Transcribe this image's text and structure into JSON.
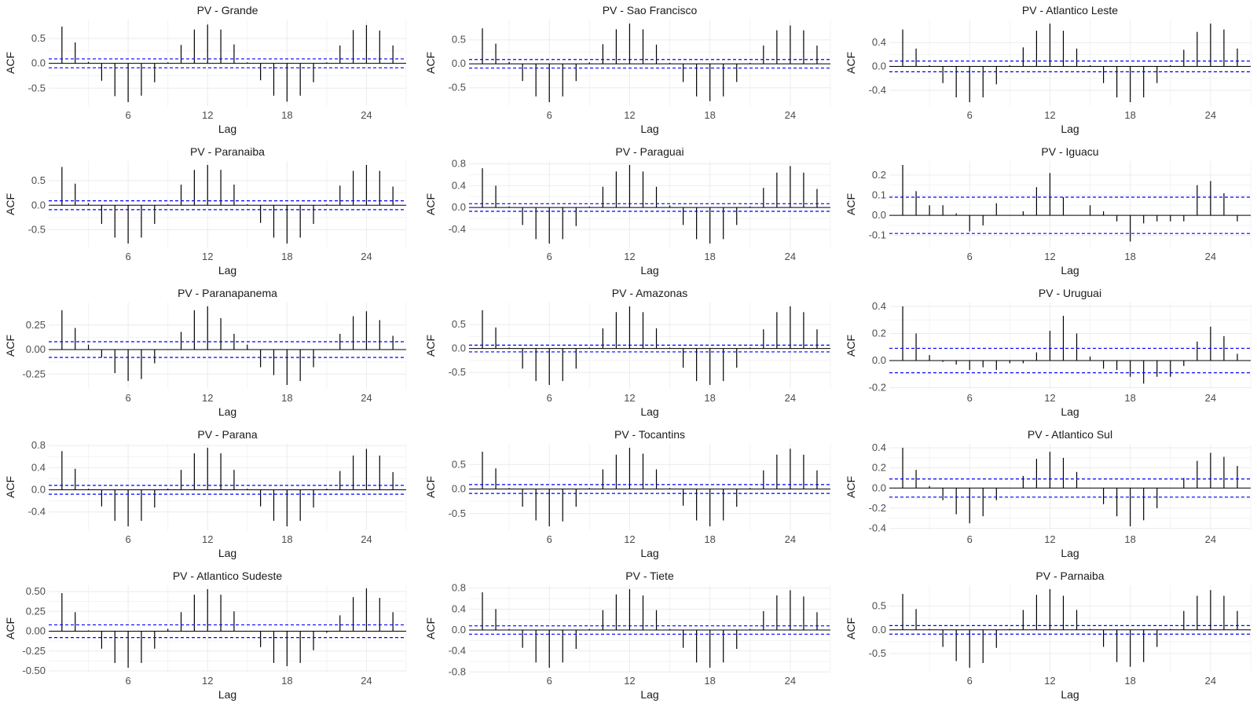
{
  "colors": {
    "bar": "#000000",
    "conf": "#0000ff",
    "grid": "#ebebeb",
    "text": "#4d4d4d",
    "title": "#1a1a1a"
  },
  "chart_data": [
    {
      "type": "bar",
      "title": "PV - Grande",
      "xlabel": "Lag",
      "ylabel": "ACF",
      "x_ticks": [
        6,
        12,
        18,
        24
      ],
      "y_ticks": [
        -0.5,
        0.0,
        0.5
      ],
      "y_tick_labels": [
        "-0.5",
        "0.0",
        "0.5"
      ],
      "ylim": [
        -0.78,
        0.8
      ],
      "conf": 0.09,
      "lags": [
        1,
        2,
        3,
        4,
        5,
        6,
        7,
        8,
        9,
        10,
        11,
        12,
        13,
        14,
        15,
        16,
        17,
        18,
        19,
        20,
        21,
        22,
        23,
        24,
        25,
        26
      ],
      "values": [
        0.74,
        0.42,
        0.03,
        -0.35,
        -0.66,
        -0.78,
        -0.65,
        -0.38,
        0.02,
        0.37,
        0.68,
        0.78,
        0.68,
        0.38,
        0.02,
        -0.34,
        -0.65,
        -0.77,
        -0.65,
        -0.38,
        0.02,
        0.36,
        0.67,
        0.77,
        0.66,
        0.36
      ]
    },
    {
      "type": "bar",
      "title": "PV - Sao Francisco",
      "xlabel": "Lag",
      "ylabel": "ACF",
      "x_ticks": [
        6,
        12,
        18,
        24
      ],
      "y_ticks": [
        -0.5,
        0.0,
        0.5
      ],
      "y_tick_labels": [
        "-0.5",
        "0.0",
        "0.5"
      ],
      "ylim": [
        -0.8,
        0.84
      ],
      "conf": 0.09,
      "lags": [
        1,
        2,
        3,
        4,
        5,
        6,
        7,
        8,
        9,
        10,
        11,
        12,
        13,
        14,
        15,
        16,
        17,
        18,
        19,
        20,
        21,
        22,
        23,
        24,
        25,
        26
      ],
      "values": [
        0.74,
        0.42,
        0.04,
        -0.36,
        -0.68,
        -0.8,
        -0.68,
        -0.36,
        0.03,
        0.41,
        0.72,
        0.84,
        0.72,
        0.4,
        0.02,
        -0.38,
        -0.68,
        -0.78,
        -0.68,
        -0.38,
        0.02,
        0.38,
        0.7,
        0.8,
        0.7,
        0.38
      ]
    },
    {
      "type": "bar",
      "title": "PV - Atlantico Leste",
      "xlabel": "Lag",
      "ylabel": "ACF",
      "x_ticks": [
        6,
        12,
        18,
        24
      ],
      "y_ticks": [
        -0.4,
        0.0,
        0.4
      ],
      "y_tick_labels": [
        "-0.4",
        "0.0",
        "0.4"
      ],
      "ylim": [
        -0.6,
        0.72
      ],
      "conf": 0.09,
      "lags": [
        1,
        2,
        3,
        4,
        5,
        6,
        7,
        8,
        9,
        10,
        11,
        12,
        13,
        14,
        15,
        16,
        17,
        18,
        19,
        20,
        21,
        22,
        23,
        24,
        25,
        26
      ],
      "values": [
        0.62,
        0.3,
        0.02,
        -0.28,
        -0.52,
        -0.6,
        -0.52,
        -0.3,
        0.02,
        0.32,
        0.6,
        0.72,
        0.6,
        0.3,
        0.02,
        -0.28,
        -0.52,
        -0.6,
        -0.52,
        -0.28,
        0.02,
        0.28,
        0.58,
        0.72,
        0.62,
        0.3
      ]
    },
    {
      "type": "bar",
      "title": "PV - Paranaiba",
      "xlabel": "Lag",
      "ylabel": "ACF",
      "x_ticks": [
        6,
        12,
        18,
        24
      ],
      "y_ticks": [
        -0.5,
        0.0,
        0.5
      ],
      "y_tick_labels": [
        "-0.5",
        "0.0",
        "0.5"
      ],
      "ylim": [
        -0.78,
        0.82
      ],
      "conf": 0.09,
      "lags": [
        1,
        2,
        3,
        4,
        5,
        6,
        7,
        8,
        9,
        10,
        11,
        12,
        13,
        14,
        15,
        16,
        17,
        18,
        19,
        20,
        21,
        22,
        23,
        24,
        25,
        26
      ],
      "values": [
        0.78,
        0.44,
        0.04,
        -0.38,
        -0.66,
        -0.78,
        -0.66,
        -0.38,
        0.02,
        0.42,
        0.72,
        0.82,
        0.72,
        0.42,
        0.02,
        -0.36,
        -0.66,
        -0.78,
        -0.66,
        -0.38,
        0.02,
        0.4,
        0.7,
        0.82,
        0.7,
        0.38
      ]
    },
    {
      "type": "bar",
      "title": "PV - Paraguai",
      "xlabel": "Lag",
      "ylabel": "ACF",
      "x_ticks": [
        6,
        12,
        18,
        24
      ],
      "y_ticks": [
        -0.4,
        0.0,
        0.4,
        0.8
      ],
      "y_tick_labels": [
        "-0.4",
        "0.0",
        "0.4",
        "0.8"
      ],
      "ylim": [
        -0.66,
        0.78
      ],
      "conf": 0.07,
      "lags": [
        1,
        2,
        3,
        4,
        5,
        6,
        7,
        8,
        9,
        10,
        11,
        12,
        13,
        14,
        15,
        16,
        17,
        18,
        19,
        20,
        21,
        22,
        23,
        24,
        25,
        26
      ],
      "values": [
        0.72,
        0.4,
        0.02,
        -0.32,
        -0.58,
        -0.66,
        -0.58,
        -0.34,
        0.02,
        0.38,
        0.66,
        0.78,
        0.66,
        0.38,
        0.04,
        -0.32,
        -0.58,
        -0.66,
        -0.58,
        -0.32,
        0.02,
        0.36,
        0.64,
        0.76,
        0.64,
        0.34
      ]
    },
    {
      "type": "bar",
      "title": "PV - Iguacu",
      "xlabel": "Lag",
      "ylabel": "ACF",
      "x_ticks": [
        6,
        12,
        18,
        24
      ],
      "y_ticks": [
        -0.1,
        0.0,
        0.1,
        0.2
      ],
      "y_tick_labels": [
        "-0.1",
        "0.0",
        "0.1",
        "0.2"
      ],
      "ylim": [
        -0.14,
        0.25
      ],
      "conf": 0.09,
      "lags": [
        1,
        2,
        3,
        4,
        5,
        6,
        7,
        8,
        9,
        10,
        11,
        12,
        13,
        14,
        15,
        16,
        17,
        18,
        19,
        20,
        21,
        22,
        23,
        24,
        25,
        26
      ],
      "values": [
        0.25,
        0.12,
        0.05,
        0.05,
        0.01,
        -0.08,
        -0.05,
        0.06,
        0.0,
        0.02,
        0.14,
        0.21,
        0.09,
        0.0,
        0.05,
        0.02,
        -0.03,
        -0.13,
        -0.04,
        -0.03,
        -0.03,
        -0.03,
        0.15,
        0.17,
        0.11,
        -0.03
      ]
    },
    {
      "type": "bar",
      "title": "PV - Paranapanema",
      "xlabel": "Lag",
      "ylabel": "ACF",
      "x_ticks": [
        6,
        12,
        18,
        24
      ],
      "y_ticks": [
        -0.25,
        0.0,
        0.25
      ],
      "y_tick_labels": [
        "-0.25",
        "0.00",
        "0.25"
      ],
      "ylim": [
        -0.36,
        0.44
      ],
      "conf": 0.08,
      "lags": [
        1,
        2,
        3,
        4,
        5,
        6,
        7,
        8,
        9,
        10,
        11,
        12,
        13,
        14,
        15,
        16,
        17,
        18,
        19,
        20,
        21,
        22,
        23,
        24,
        25,
        26
      ],
      "values": [
        0.4,
        0.22,
        0.05,
        -0.08,
        -0.24,
        -0.32,
        -0.3,
        -0.14,
        0.0,
        0.18,
        0.4,
        0.44,
        0.32,
        0.16,
        0.05,
        -0.18,
        -0.26,
        -0.36,
        -0.32,
        -0.18,
        0.0,
        0.16,
        0.34,
        0.39,
        0.3,
        0.14
      ]
    },
    {
      "type": "bar",
      "title": "PV - Amazonas",
      "xlabel": "Lag",
      "ylabel": "ACF",
      "x_ticks": [
        6,
        12,
        18,
        24
      ],
      "y_ticks": [
        -0.5,
        0.0,
        0.5
      ],
      "y_tick_labels": [
        "-0.5",
        "0.0",
        "0.5"
      ],
      "ylim": [
        -0.76,
        0.88
      ],
      "conf": 0.07,
      "lags": [
        1,
        2,
        3,
        4,
        5,
        6,
        7,
        8,
        9,
        10,
        11,
        12,
        13,
        14,
        15,
        16,
        17,
        18,
        19,
        20,
        21,
        22,
        23,
        24,
        25,
        26
      ],
      "values": [
        0.8,
        0.44,
        0.02,
        -0.42,
        -0.68,
        -0.76,
        -0.68,
        -0.42,
        0.02,
        0.42,
        0.76,
        0.88,
        0.76,
        0.42,
        0.02,
        -0.4,
        -0.68,
        -0.76,
        -0.68,
        -0.4,
        0.02,
        0.4,
        0.76,
        0.88,
        0.76,
        0.4
      ]
    },
    {
      "type": "bar",
      "title": "PV - Uruguai",
      "xlabel": "Lag",
      "ylabel": "ACF",
      "x_ticks": [
        6,
        12,
        18,
        24
      ],
      "y_ticks": [
        -0.2,
        0.0,
        0.2,
        0.4
      ],
      "y_tick_labels": [
        "-0.2",
        "0.0",
        "0.2",
        "0.4"
      ],
      "ylim": [
        -0.18,
        0.4
      ],
      "conf": 0.09,
      "lags": [
        1,
        2,
        3,
        4,
        5,
        6,
        7,
        8,
        9,
        10,
        11,
        12,
        13,
        14,
        15,
        16,
        17,
        18,
        19,
        20,
        21,
        22,
        23,
        24,
        25,
        26
      ],
      "values": [
        0.4,
        0.2,
        0.04,
        -0.01,
        -0.03,
        -0.07,
        -0.05,
        -0.07,
        -0.02,
        -0.02,
        0.06,
        0.22,
        0.33,
        0.2,
        0.03,
        -0.06,
        -0.07,
        -0.12,
        -0.17,
        -0.12,
        -0.12,
        -0.04,
        0.14,
        0.25,
        0.18,
        0.05
      ]
    },
    {
      "type": "bar",
      "title": "PV - Parana",
      "xlabel": "Lag",
      "ylabel": "ACF",
      "x_ticks": [
        6,
        12,
        18,
        24
      ],
      "y_ticks": [
        -0.4,
        0.0,
        0.4,
        0.8
      ],
      "y_tick_labels": [
        "-0.4",
        "0.0",
        "0.4",
        "0.8"
      ],
      "ylim": [
        -0.66,
        0.76
      ],
      "conf": 0.08,
      "lags": [
        1,
        2,
        3,
        4,
        5,
        6,
        7,
        8,
        9,
        10,
        11,
        12,
        13,
        14,
        15,
        16,
        17,
        18,
        19,
        20,
        21,
        22,
        23,
        24,
        25,
        26
      ],
      "values": [
        0.7,
        0.38,
        0.02,
        -0.3,
        -0.56,
        -0.66,
        -0.56,
        -0.32,
        0.02,
        0.36,
        0.66,
        0.76,
        0.66,
        0.36,
        0.02,
        -0.3,
        -0.56,
        -0.66,
        -0.56,
        -0.32,
        0.02,
        0.34,
        0.62,
        0.74,
        0.62,
        0.32
      ]
    },
    {
      "type": "bar",
      "title": "PV - Tocantins",
      "xlabel": "Lag",
      "ylabel": "ACF",
      "x_ticks": [
        6,
        12,
        18,
        24
      ],
      "y_ticks": [
        -0.5,
        0.0,
        0.5
      ],
      "y_tick_labels": [
        "-0.5",
        "0.0",
        "0.5"
      ],
      "ylim": [
        -0.76,
        0.84
      ],
      "conf": 0.09,
      "lags": [
        1,
        2,
        3,
        4,
        5,
        6,
        7,
        8,
        9,
        10,
        11,
        12,
        13,
        14,
        15,
        16,
        17,
        18,
        19,
        20,
        21,
        22,
        23,
        24,
        25,
        26
      ],
      "values": [
        0.76,
        0.42,
        0.02,
        -0.36,
        -0.64,
        -0.76,
        -0.66,
        -0.36,
        0.02,
        0.4,
        0.7,
        0.84,
        0.72,
        0.4,
        0.02,
        -0.34,
        -0.64,
        -0.76,
        -0.64,
        -0.36,
        0.02,
        0.38,
        0.7,
        0.82,
        0.7,
        0.38
      ]
    },
    {
      "type": "bar",
      "title": "PV - Atlantico Sul",
      "xlabel": "Lag",
      "ylabel": "ACF",
      "x_ticks": [
        6,
        12,
        18,
        24
      ],
      "y_ticks": [
        -0.4,
        -0.2,
        0.0,
        0.2,
        0.4
      ],
      "y_tick_labels": [
        "-0.4",
        "-0.2",
        "0.0",
        "0.2",
        "0.4"
      ],
      "ylim": [
        -0.38,
        0.4
      ],
      "conf": 0.09,
      "lags": [
        1,
        2,
        3,
        4,
        5,
        6,
        7,
        8,
        9,
        10,
        11,
        12,
        13,
        14,
        15,
        16,
        17,
        18,
        19,
        20,
        21,
        22,
        23,
        24,
        25,
        26
      ],
      "values": [
        0.4,
        0.18,
        0.02,
        -0.12,
        -0.26,
        -0.35,
        -0.28,
        -0.12,
        0.0,
        0.12,
        0.29,
        0.36,
        0.3,
        0.16,
        0.0,
        -0.16,
        -0.28,
        -0.38,
        -0.32,
        -0.2,
        0.0,
        0.1,
        0.27,
        0.35,
        0.31,
        0.22
      ]
    },
    {
      "type": "bar",
      "title": "PV - Atlantico Sudeste",
      "xlabel": "Lag",
      "ylabel": "ACF",
      "x_ticks": [
        6,
        12,
        18,
        24
      ],
      "y_ticks": [
        -0.5,
        -0.25,
        0.0,
        0.25,
        0.5
      ],
      "y_tick_labels": [
        "-0.50",
        "-0.25",
        "0.00",
        "0.25",
        "0.50"
      ],
      "ylim": [
        -0.46,
        0.53
      ],
      "conf": 0.08,
      "lags": [
        1,
        2,
        3,
        4,
        5,
        6,
        7,
        8,
        9,
        10,
        11,
        12,
        13,
        14,
        15,
        16,
        17,
        18,
        19,
        20,
        21,
        22,
        23,
        24,
        25,
        26
      ],
      "values": [
        0.48,
        0.24,
        0.01,
        -0.22,
        -0.4,
        -0.46,
        -0.4,
        -0.22,
        0.03,
        0.24,
        0.46,
        0.53,
        0.46,
        0.25,
        0.0,
        -0.2,
        -0.4,
        -0.44,
        -0.4,
        -0.24,
        -0.02,
        0.2,
        0.43,
        0.54,
        0.42,
        0.24
      ]
    },
    {
      "type": "bar",
      "title": "PV - Tiete",
      "xlabel": "Lag",
      "ylabel": "ACF",
      "x_ticks": [
        6,
        12,
        18,
        24
      ],
      "y_ticks": [
        -0.8,
        -0.4,
        0.0,
        0.4,
        0.8
      ],
      "y_tick_labels": [
        "-0.8",
        "-0.4",
        "0.0",
        "0.4",
        "0.8"
      ],
      "ylim": [
        -0.72,
        0.78
      ],
      "conf": 0.08,
      "lags": [
        1,
        2,
        3,
        4,
        5,
        6,
        7,
        8,
        9,
        10,
        11,
        12,
        13,
        14,
        15,
        16,
        17,
        18,
        19,
        20,
        21,
        22,
        23,
        24,
        25,
        26
      ],
      "values": [
        0.72,
        0.4,
        0.02,
        -0.34,
        -0.62,
        -0.72,
        -0.62,
        -0.36,
        0.02,
        0.38,
        0.68,
        0.78,
        0.66,
        0.38,
        0.02,
        -0.34,
        -0.62,
        -0.72,
        -0.62,
        -0.36,
        0.02,
        0.36,
        0.66,
        0.76,
        0.64,
        0.34
      ]
    },
    {
      "type": "bar",
      "title": "PV - Parnaiba",
      "xlabel": "Lag",
      "ylabel": "ACF",
      "x_ticks": [
        6,
        12,
        18,
        24
      ],
      "y_ticks": [
        -0.5,
        0.0,
        0.5
      ],
      "y_tick_labels": [
        "-0.5",
        "0.0",
        "0.5"
      ],
      "ylim": [
        -0.8,
        0.86
      ],
      "conf": 0.09,
      "lags": [
        1,
        2,
        3,
        4,
        5,
        6,
        7,
        8,
        9,
        10,
        11,
        12,
        13,
        14,
        15,
        16,
        17,
        18,
        19,
        20,
        21,
        22,
        23,
        24,
        25,
        26
      ],
      "values": [
        0.76,
        0.44,
        0.02,
        -0.36,
        -0.66,
        -0.8,
        -0.7,
        -0.38,
        0.02,
        0.42,
        0.74,
        0.86,
        0.72,
        0.42,
        0.02,
        -0.36,
        -0.68,
        -0.78,
        -0.68,
        -0.36,
        0.02,
        0.4,
        0.72,
        0.84,
        0.72,
        0.4
      ]
    }
  ]
}
